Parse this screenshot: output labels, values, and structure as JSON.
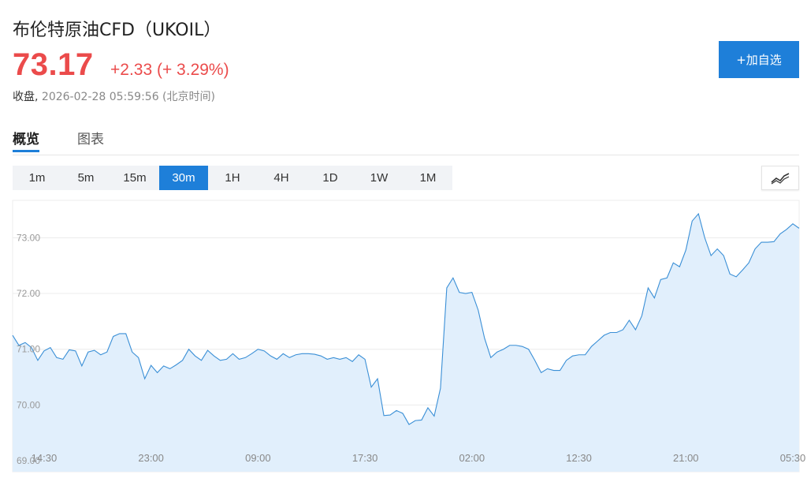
{
  "header": {
    "title": "布伦特原油CFD（UKOIL）",
    "price": "73.17",
    "change": "+2.33 (+ 3.29%)",
    "status_label": "收盘,",
    "timestamp": "2026-02-28 05:59:56 (北京时间)",
    "add_button": "+加自选"
  },
  "tabs": [
    {
      "label": "概览",
      "active": true
    },
    {
      "label": "图表",
      "active": false
    }
  ],
  "timeframes": [
    {
      "label": "1m",
      "active": false
    },
    {
      "label": "5m",
      "active": false
    },
    {
      "label": "15m",
      "active": false
    },
    {
      "label": "30m",
      "active": true
    },
    {
      "label": "1H",
      "active": false
    },
    {
      "label": "4H",
      "active": false
    },
    {
      "label": "1D",
      "active": false
    },
    {
      "label": "1W",
      "active": false
    },
    {
      "label": "1M",
      "active": false
    }
  ],
  "chart_type_icon": "line-chart-icon",
  "colors": {
    "accent": "#1e7fd9",
    "up": "#eb4b4b",
    "line": "#3a8fd6",
    "area": "#e1effc"
  },
  "chart_data": {
    "type": "area",
    "ylim": [
      69.0,
      73.6
    ],
    "yticks": [
      69.0,
      70.0,
      71.0,
      72.0,
      73.0
    ],
    "ytick_labels": [
      "69.00",
      "70.00",
      "71.00",
      "72.00",
      "73.00"
    ],
    "xtick_labels": [
      {
        "label": "14:30",
        "index": 5
      },
      {
        "label": "23:00",
        "index": 22
      },
      {
        "label": "09:00",
        "index": 39
      },
      {
        "label": "17:30",
        "index": 56
      },
      {
        "label": "02:00",
        "index": 73
      },
      {
        "label": "12:30",
        "index": 90
      },
      {
        "label": "21:00",
        "index": 107
      },
      {
        "label": "05:30",
        "index": 124
      }
    ],
    "grid": true,
    "values": [
      71.25,
      71.07,
      71.12,
      71.03,
      70.8,
      70.97,
      71.03,
      70.85,
      70.82,
      70.99,
      70.97,
      70.7,
      70.95,
      70.98,
      70.9,
      70.95,
      71.23,
      71.28,
      71.28,
      70.95,
      70.85,
      70.47,
      70.71,
      70.58,
      70.7,
      70.65,
      70.72,
      70.8,
      71.0,
      70.88,
      70.8,
      70.98,
      70.88,
      70.8,
      70.82,
      70.92,
      70.82,
      70.85,
      70.92,
      71.0,
      70.97,
      70.88,
      70.82,
      70.92,
      70.85,
      70.9,
      70.92,
      70.92,
      70.91,
      70.88,
      70.82,
      70.85,
      70.82,
      70.85,
      70.78,
      70.9,
      70.82,
      70.32,
      70.47,
      69.81,
      69.82,
      69.9,
      69.85,
      69.65,
      69.72,
      69.73,
      69.95,
      69.8,
      70.3,
      72.1,
      72.28,
      72.02,
      72.0,
      72.02,
      71.7,
      71.2,
      70.85,
      70.95,
      71.0,
      71.07,
      71.07,
      71.05,
      71.0,
      70.8,
      70.58,
      70.65,
      70.62,
      70.62,
      70.8,
      70.88,
      70.9,
      70.9,
      71.05,
      71.15,
      71.25,
      71.3,
      71.3,
      71.35,
      71.52,
      71.35,
      71.6,
      72.1,
      71.92,
      72.25,
      72.28,
      72.55,
      72.48,
      72.78,
      73.3,
      73.43,
      73.0,
      72.68,
      72.8,
      72.68,
      72.35,
      72.3,
      72.42,
      72.55,
      72.8,
      72.92,
      72.92,
      72.93,
      73.07,
      73.15,
      73.25,
      73.17
    ]
  }
}
